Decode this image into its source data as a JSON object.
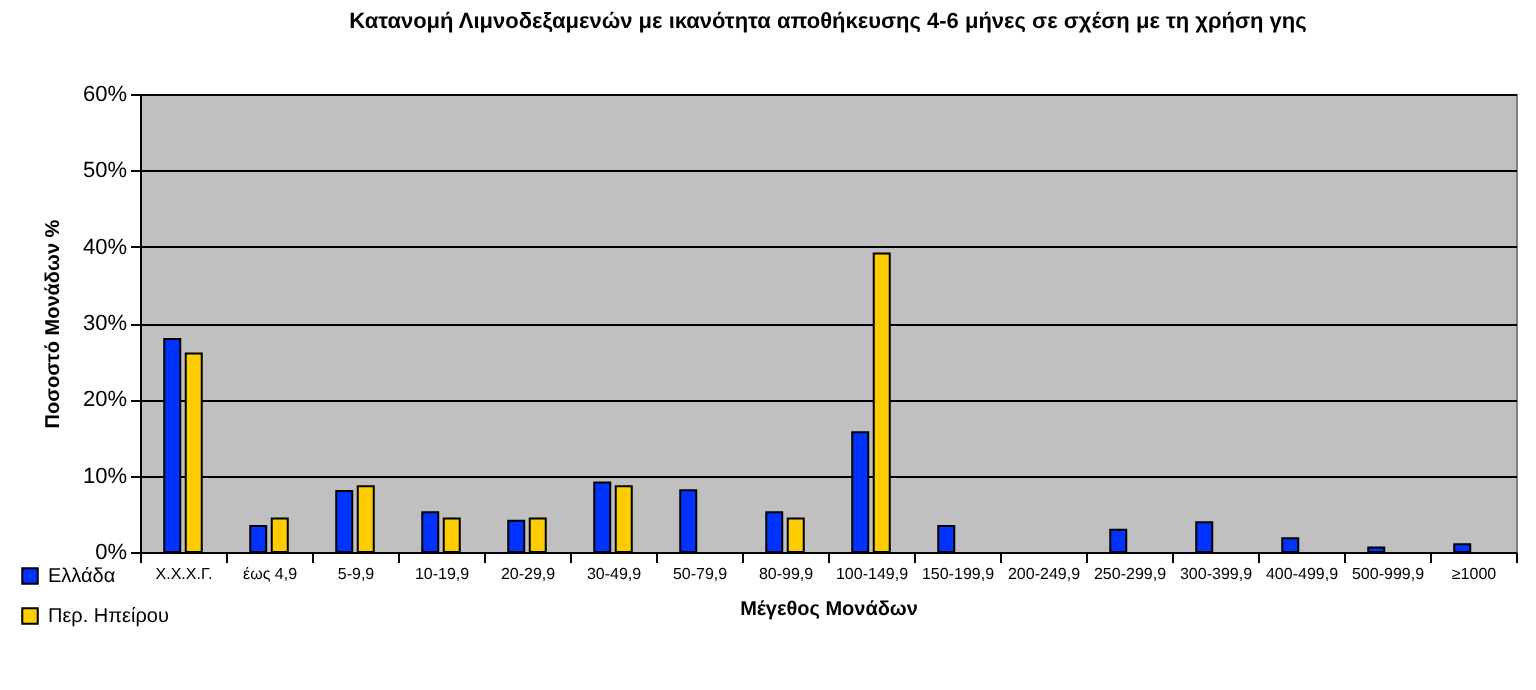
{
  "chart_data": {
    "type": "bar",
    "title": "Κατανομή Λιμνοδεξαμενών με ικανότητα αποθήκευσης 4-6 μήνες σε σχέση με τη χρήση γης",
    "xlabel": "Μέγεθος Μονάδων",
    "ylabel": "Ποσοστό Μονάδων %",
    "categories": [
      "Χ.Χ.Χ.Γ.",
      "έως 4,9",
      "5-9,9",
      "10-19,9",
      "20-29,9",
      "30-49,9",
      "50-79,9",
      "80-99,9",
      "100-149,9",
      "150-199,9",
      "200-249,9",
      "250-299,9",
      "300-399,9",
      "400-499,9",
      "500-999,9",
      "≥1000"
    ],
    "series": [
      {
        "name": "Ελλάδα",
        "color": "#0033ff",
        "values": [
          27.9,
          3.4,
          8.0,
          5.2,
          4.1,
          9.1,
          8.1,
          5.2,
          15.7,
          3.4,
          null,
          2.9,
          3.9,
          1.8,
          0.6,
          1.0
        ]
      },
      {
        "name": "Περ. Ηπείρου",
        "color": "#ffcc00",
        "values": [
          26.0,
          4.4,
          8.6,
          4.4,
          4.4,
          8.6,
          null,
          4.4,
          39.1,
          null,
          null,
          null,
          null,
          null,
          null,
          null
        ]
      }
    ],
    "ylim": [
      0,
      60
    ],
    "yticks": [
      {
        "value": 0,
        "label": "0%"
      },
      {
        "value": 10,
        "label": "10%"
      },
      {
        "value": 20,
        "label": "20%"
      },
      {
        "value": 30,
        "label": "30%"
      },
      {
        "value": 40,
        "label": "40%"
      },
      {
        "value": 50,
        "label": "50%"
      },
      {
        "value": 60,
        "label": "60%"
      }
    ],
    "grid": "y",
    "legend": "bottom left"
  }
}
